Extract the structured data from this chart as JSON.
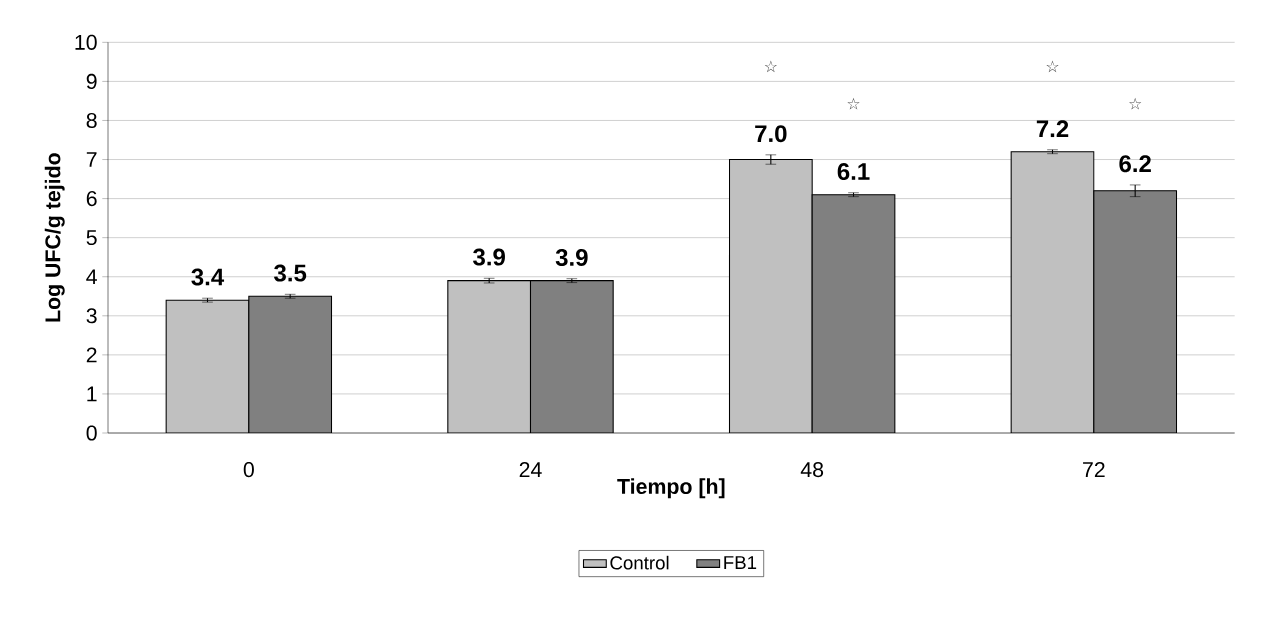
{
  "chart_data": {
    "type": "bar",
    "xlabel": "Tiempo [h]",
    "ylabel": "Log UFC/g tejido",
    "categories": [
      "0",
      "24",
      "48",
      "72"
    ],
    "series": [
      {
        "name": "Control",
        "color": "#c0c0c0",
        "values": [
          3.4,
          3.9,
          7.0,
          7.2
        ],
        "errors": [
          0.05,
          0.06,
          0.12,
          0.05
        ],
        "value_labels": [
          "3.4",
          "3.9",
          "7.0",
          "7.2"
        ]
      },
      {
        "name": "FB1",
        "color": "#808080",
        "values": [
          3.5,
          3.9,
          6.1,
          6.2
        ],
        "errors": [
          0.05,
          0.05,
          0.05,
          0.15
        ],
        "value_labels": [
          "3.5",
          "3.9",
          "6.1",
          "6.2"
        ]
      }
    ],
    "annotations": [
      "☆",
      "☆",
      "☆",
      "☆"
    ],
    "ylim": [
      0,
      10
    ],
    "yticks": [
      0,
      1,
      2,
      3,
      4,
      5,
      6,
      7,
      8,
      9,
      10
    ],
    "grid": "y",
    "legend": "bottom"
  }
}
